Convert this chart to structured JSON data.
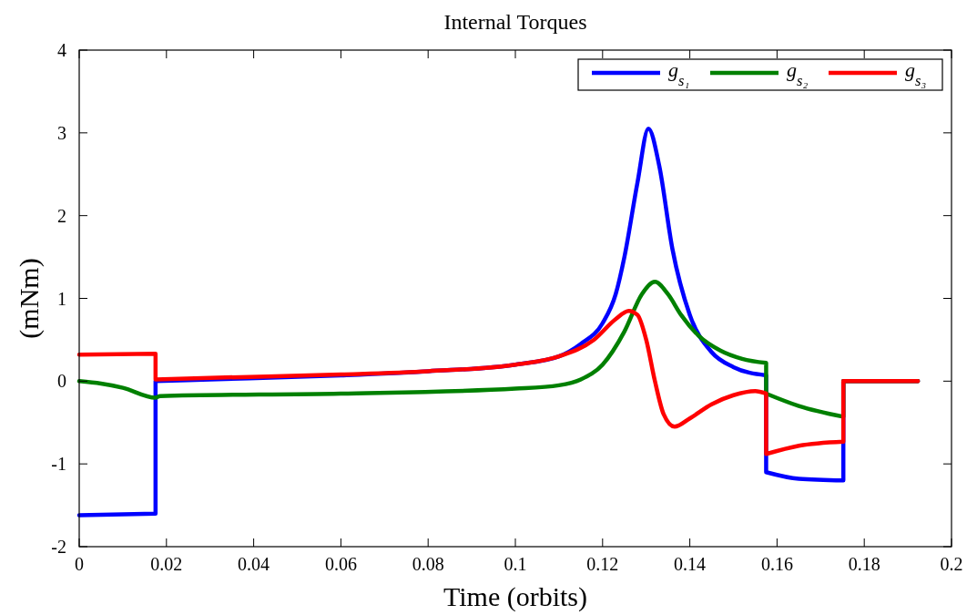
{
  "chart_data": {
    "type": "line",
    "title": "Internal Torques",
    "xlabel": "Time (orbits)",
    "ylabel": "(mNm)",
    "xlim": [
      0,
      0.2
    ],
    "xticks": [
      0,
      0.02,
      0.04,
      0.06,
      0.08,
      0.1,
      0.12,
      0.14,
      0.16,
      0.18,
      0.2
    ],
    "ylim": [
      -2,
      4
    ],
    "yticks": [
      -2,
      -1,
      0,
      1,
      2,
      3,
      4
    ],
    "grid": false,
    "legend": "top right",
    "line_style": "solid",
    "marker": "none",
    "series": [
      {
        "name": "g$_{s₁}$",
        "color": "#0000ff",
        "x": [
          0,
          0.0175,
          0.0175,
          0.03,
          0.06,
          0.08,
          0.1,
          0.11,
          0.115,
          0.12,
          0.123,
          0.125,
          0.128,
          0.1305,
          0.133,
          0.136,
          0.14,
          0.145,
          0.15,
          0.1575,
          0.1575,
          0.165,
          0.1752,
          0.1752,
          0.1923
        ],
        "values": [
          -1.62,
          -1.6,
          0,
          0.02,
          0.07,
          0.12,
          0.2,
          0.3,
          0.45,
          0.7,
          1.05,
          1.5,
          2.4,
          3.05,
          2.6,
          1.6,
          0.8,
          0.35,
          0.17,
          0.07,
          -1.1,
          -1.18,
          -1.2,
          0,
          0
        ]
      },
      {
        "name": "g$_{s₂}$",
        "color": "#008000",
        "x": [
          0,
          0.005,
          0.01,
          0.0175,
          0.0185,
          0.06,
          0.1,
          0.11,
          0.115,
          0.12,
          0.125,
          0.129,
          0.132,
          0.135,
          0.138,
          0.142,
          0.147,
          0.152,
          0.1575,
          0.1575,
          0.165,
          0.1752,
          0.1752,
          0.1923
        ],
        "values": [
          0,
          -0.03,
          -0.08,
          -0.2,
          -0.18,
          -0.15,
          -0.09,
          -0.05,
          0.02,
          0.2,
          0.6,
          1.05,
          1.2,
          1.05,
          0.8,
          0.55,
          0.37,
          0.27,
          0.22,
          -0.15,
          -0.3,
          -0.43,
          0,
          0
        ]
      },
      {
        "name": "g$_{s₃}$",
        "color": "#ff0000",
        "x": [
          0,
          0.0175,
          0.0175,
          0.03,
          0.06,
          0.08,
          0.1,
          0.11,
          0.118,
          0.123,
          0.126,
          0.128,
          0.13,
          0.132,
          0.134,
          0.1365,
          0.14,
          0.145,
          0.15,
          0.155,
          0.1575,
          0.1575,
          0.165,
          0.1752,
          0.1752,
          0.1923
        ],
        "values": [
          0.32,
          0.33,
          0.02,
          0.04,
          0.08,
          0.12,
          0.2,
          0.3,
          0.5,
          0.75,
          0.85,
          0.8,
          0.5,
          0,
          -0.4,
          -0.55,
          -0.45,
          -0.28,
          -0.17,
          -0.12,
          -0.15,
          -0.88,
          -0.78,
          -0.73,
          0,
          0
        ]
      }
    ]
  }
}
